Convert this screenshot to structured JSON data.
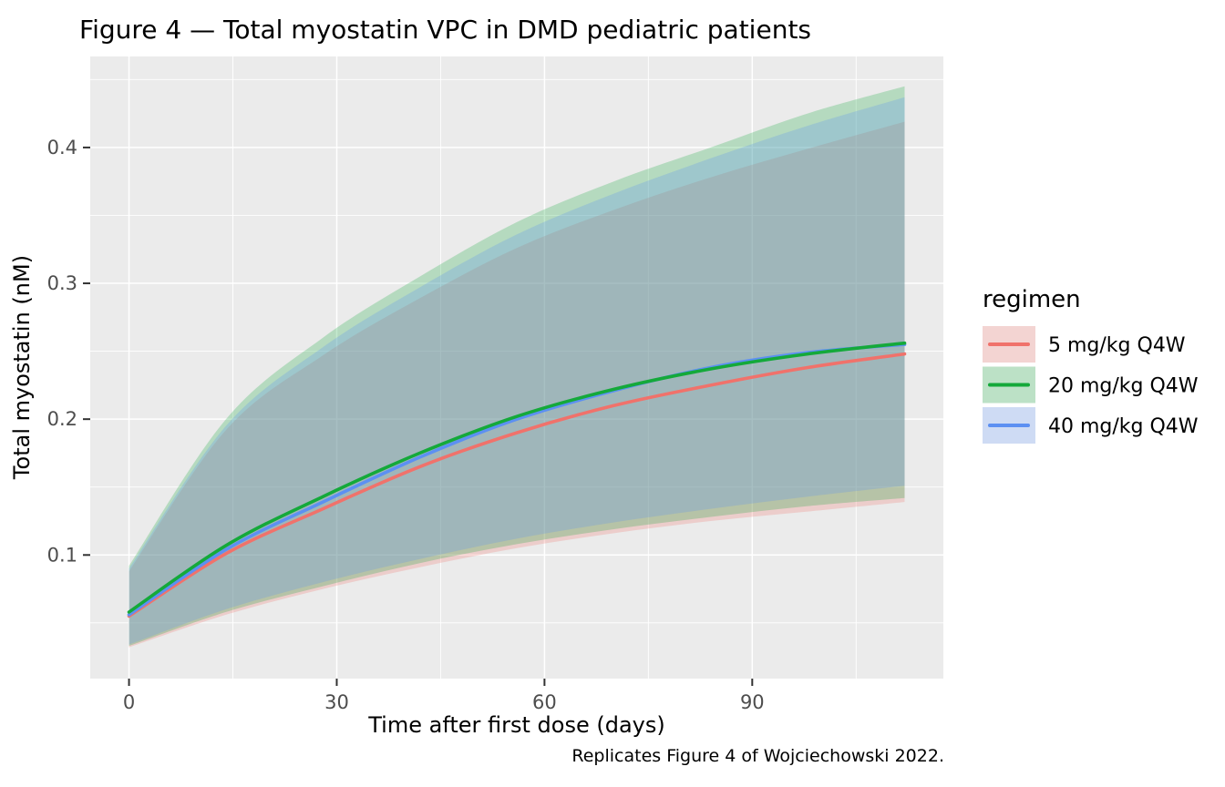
{
  "title": "Figure 4 — Total myostatin VPC in DMD pediatric patients",
  "caption": "Replicates Figure 4 of Wojciechowski 2022.",
  "colors": {
    "panel_background": "#ebebeb",
    "grid": "#ffffff",
    "tick_text": "#4d4d4d",
    "axis_text": "#000000",
    "legend_key_background": "#f5f5f5"
  },
  "chart_data": {
    "type": "line",
    "title": "Figure 4 — Total myostatin VPC in DMD pediatric patients",
    "xlabel": "Time after first dose (days)",
    "ylabel": "Total myostatin (nM)",
    "xlim": [
      -5.6,
      117.6
    ],
    "ylim": [
      0.009,
      0.467
    ],
    "grid": "on",
    "x_major_ticks": [
      0,
      30,
      60,
      90
    ],
    "x_minor_ticks": [
      15,
      45,
      75,
      105
    ],
    "y_major_ticks": [
      0.1,
      0.2,
      0.3,
      0.4
    ],
    "y_major_tick_labels": [
      "0.1",
      "0.2",
      "0.3",
      "0.4"
    ],
    "y_minor_ticks": [
      0.05,
      0.15,
      0.25,
      0.35,
      0.45
    ],
    "legend": {
      "title": "regimen",
      "position": "right",
      "entries": [
        "5 mg/kg Q4W",
        "20 mg/kg Q4W",
        "40 mg/kg Q4W"
      ]
    },
    "x": [
      0,
      14,
      28,
      42,
      56,
      70,
      84,
      98,
      112
    ],
    "series": [
      {
        "name": "5 mg/kg Q4W",
        "color": "#f0726b",
        "fill": "rgba(240,114,107,0.25)",
        "median": [
          0.055,
          0.101,
          0.134,
          0.165,
          0.19,
          0.21,
          0.225,
          0.238,
          0.248
        ],
        "lo": [
          0.032,
          0.056,
          0.075,
          0.091,
          0.105,
          0.116,
          0.125,
          0.132,
          0.139
        ],
        "hi": [
          0.088,
          0.192,
          0.247,
          0.289,
          0.326,
          0.354,
          0.378,
          0.399,
          0.419
        ]
      },
      {
        "name": "20 mg/kg Q4W",
        "color": "#14a93a",
        "fill": "rgba(20,169,58,0.25)",
        "median": [
          0.058,
          0.107,
          0.143,
          0.175,
          0.202,
          0.222,
          0.237,
          0.248,
          0.256
        ],
        "lo": [
          0.033,
          0.058,
          0.077,
          0.094,
          0.108,
          0.119,
          0.128,
          0.136,
          0.142
        ],
        "hi": [
          0.092,
          0.2,
          0.26,
          0.305,
          0.345,
          0.375,
          0.4,
          0.425,
          0.445
        ]
      },
      {
        "name": "40 mg/kg Q4W",
        "color": "#5c90f2",
        "fill": "rgba(92,144,242,0.25)",
        "median": [
          0.056,
          0.104,
          0.139,
          0.172,
          0.2,
          0.221,
          0.238,
          0.249,
          0.255
        ],
        "lo": [
          0.034,
          0.06,
          0.08,
          0.097,
          0.112,
          0.124,
          0.134,
          0.143,
          0.151
        ],
        "hi": [
          0.09,
          0.195,
          0.253,
          0.297,
          0.336,
          0.366,
          0.392,
          0.416,
          0.437
        ]
      }
    ]
  }
}
